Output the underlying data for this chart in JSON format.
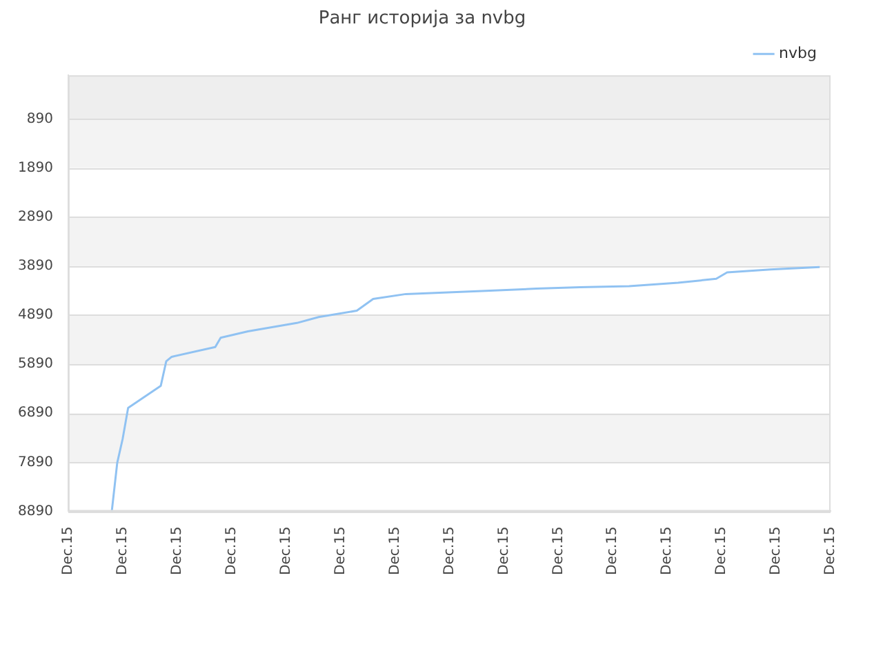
{
  "chart_data": {
    "type": "line",
    "title": "Ранг историја за nvbg",
    "categories": [
      "Dec.15",
      null,
      null,
      null,
      null,
      null,
      null,
      null,
      null,
      null,
      "Dec.15",
      null,
      null,
      null,
      null,
      null,
      null,
      null,
      null,
      null,
      "Dec.15",
      null,
      null,
      null,
      null,
      null,
      null,
      null,
      null,
      null,
      "Dec.15",
      null,
      null,
      null,
      null,
      null,
      null,
      null,
      null,
      null,
      "Dec.15",
      null,
      null,
      null,
      null,
      null,
      null,
      null,
      null,
      null,
      "Dec.15",
      null,
      null,
      null,
      null,
      null,
      null,
      null,
      null,
      null,
      "Dec.15",
      null,
      null,
      null,
      null,
      null,
      null,
      null,
      null,
      null,
      "Dec.15",
      null,
      null,
      null,
      null,
      null,
      null,
      null,
      null,
      null,
      "Dec.15",
      null,
      null,
      null,
      null,
      null,
      null,
      null,
      null,
      null,
      "Dec.15",
      null,
      null,
      null,
      null,
      null,
      null,
      null,
      null,
      null,
      "Dec.15",
      null,
      null,
      null,
      null,
      null,
      null,
      null,
      null,
      null,
      "Dec.15",
      null,
      null,
      null,
      null,
      null,
      null,
      null,
      null,
      null,
      "Dec.15",
      null,
      null,
      null,
      null,
      null,
      null,
      null,
      null,
      null,
      "Dec.15",
      null,
      null,
      null,
      null,
      null,
      null,
      null,
      null,
      null,
      "Dec.15"
    ],
    "series": [
      {
        "name": "nvbg",
        "color": "#90c2f2",
        "values": [
          null,
          null,
          null,
          null,
          null,
          null,
          null,
          null,
          8890,
          7900,
          7410,
          6780,
          null,
          null,
          null,
          null,
          null,
          6330,
          5830,
          5740,
          null,
          null,
          null,
          null,
          null,
          null,
          null,
          5540,
          5350,
          null,
          null,
          null,
          null,
          5220,
          null,
          null,
          null,
          null,
          null,
          null,
          null,
          null,
          5050,
          null,
          null,
          null,
          4930,
          null,
          null,
          null,
          null,
          null,
          null,
          4800,
          null,
          null,
          4560,
          null,
          null,
          null,
          null,
          null,
          4460,
          null,
          null,
          null,
          null,
          null,
          null,
          4430,
          null,
          null,
          null,
          null,
          null,
          null,
          4400,
          null,
          null,
          null,
          null,
          null,
          null,
          null,
          null,
          null,
          4350,
          null,
          null,
          null,
          null,
          null,
          null,
          null,
          4320,
          null,
          null,
          null,
          null,
          null,
          null,
          null,
          null,
          4300,
          null,
          null,
          null,
          null,
          null,
          null,
          null,
          null,
          4230,
          null,
          null,
          null,
          null,
          null,
          null,
          4150,
          null,
          4020,
          null,
          null,
          null,
          null,
          null,
          null,
          null,
          3960,
          null,
          null,
          null,
          null,
          null,
          null,
          null,
          null,
          3910,
          null,
          null
        ]
      }
    ],
    "ylim": [
      8890,
      1
    ],
    "yticks": [
      890,
      1890,
      2890,
      3890,
      4890,
      5890,
      6890,
      7890,
      8890
    ],
    "bands": [
      {
        "axis": "y",
        "from": 890,
        "to": 1,
        "color": "#eeeeee"
      },
      {
        "axis": "y",
        "from": 1890,
        "to": 890,
        "color": "#f3f3f3"
      },
      {
        "axis": "y",
        "from": 3890,
        "to": 2890,
        "color": "#f3f3f3"
      },
      {
        "axis": "y",
        "from": 5890,
        "to": 4890,
        "color": "#f3f3f3"
      },
      {
        "axis": "y",
        "from": 7890,
        "to": 6890,
        "color": "#f3f3f3"
      }
    ],
    "grid": "y",
    "legend": "top right",
    "marker": "none",
    "line_style": "solid"
  }
}
